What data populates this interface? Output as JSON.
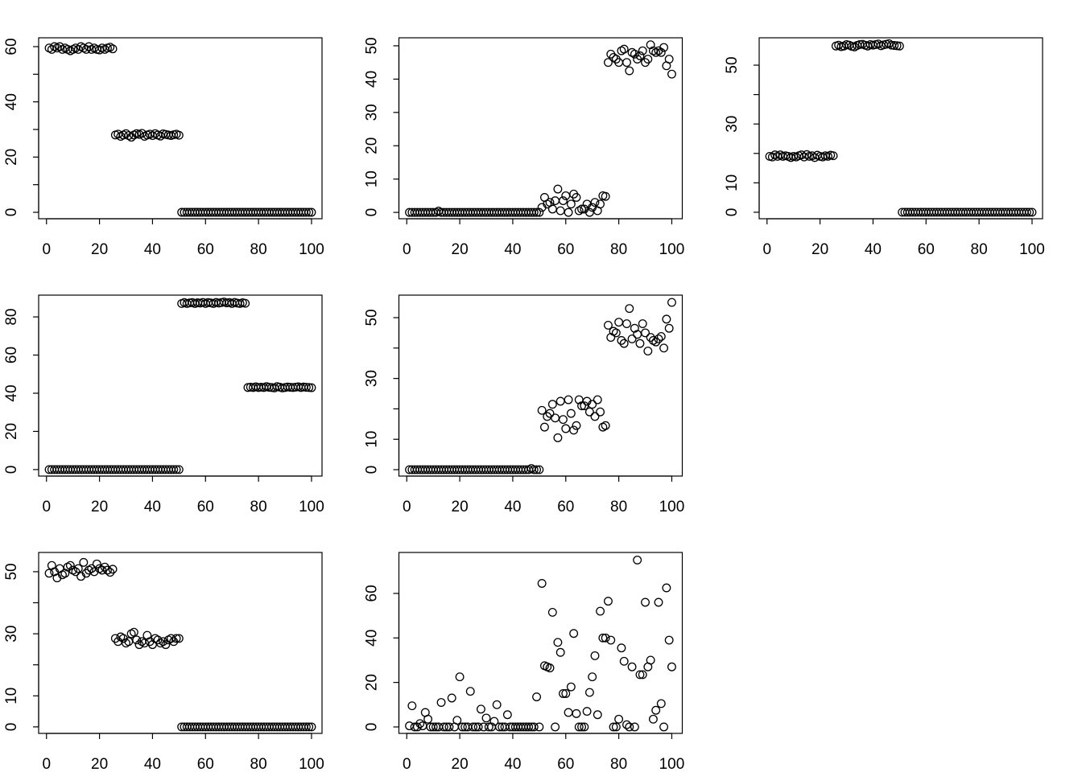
{
  "chart_data": [
    {
      "type": "scatter",
      "x": [
        1,
        2,
        3,
        4,
        5,
        6,
        7,
        8,
        9,
        10,
        11,
        12,
        13,
        14,
        15,
        16,
        17,
        18,
        19,
        20,
        21,
        22,
        23,
        24,
        25,
        26,
        27,
        28,
        29,
        30,
        31,
        32,
        33,
        34,
        35,
        36,
        37,
        38,
        39,
        40,
        41,
        42,
        43,
        44,
        45,
        46,
        47,
        48,
        49,
        50,
        51,
        52,
        53,
        54,
        55,
        56,
        57,
        58,
        59,
        60,
        61,
        62,
        63,
        64,
        65,
        66,
        67,
        68,
        69,
        70,
        71,
        72,
        73,
        74,
        75,
        76,
        77,
        78,
        79,
        80,
        81,
        82,
        83,
        84,
        85,
        86,
        87,
        88,
        89,
        90,
        91,
        92,
        93,
        94,
        95,
        96,
        97,
        98,
        99,
        100
      ],
      "values": [
        59.5,
        59,
        60,
        59.5,
        60,
        59,
        59.5,
        59,
        58.5,
        59,
        59.5,
        59,
        60,
        59.5,
        59,
        60,
        59,
        59.5,
        59,
        58.8,
        59.5,
        59,
        59.5,
        59.8,
        59.2,
        28,
        28.3,
        27.5,
        28,
        28.5,
        27.8,
        27.2,
        28,
        28.5,
        28.2,
        28.6,
        27.5,
        28,
        28.3,
        27.8,
        28.5,
        28,
        27.6,
        28.4,
        28.2,
        28,
        27.8,
        28.1,
        28.3,
        27.9,
        0,
        0,
        0,
        0,
        0,
        0,
        0,
        0,
        0,
        0,
        0,
        0,
        0,
        0,
        0,
        0,
        0,
        0,
        0,
        0,
        0,
        0,
        0,
        0,
        0,
        0,
        0,
        0,
        0,
        0,
        0,
        0,
        0,
        0,
        0,
        0,
        0,
        0,
        0,
        0,
        0,
        0,
        0,
        0,
        0,
        0,
        0,
        0,
        0,
        0
      ],
      "xlim": [
        -2.96,
        103.96
      ],
      "ylim": [
        -2.33,
        63.2
      ],
      "xticks": [
        0,
        20,
        40,
        60,
        80,
        100
      ],
      "yticks": [
        0,
        20,
        40,
        60
      ],
      "yticks_minor": [
        10,
        30,
        50
      ]
    },
    {
      "type": "scatter",
      "x": [
        1,
        2,
        3,
        4,
        5,
        6,
        7,
        8,
        9,
        10,
        11,
        12,
        13,
        14,
        15,
        16,
        17,
        18,
        19,
        20,
        21,
        22,
        23,
        24,
        25,
        26,
        27,
        28,
        29,
        30,
        31,
        32,
        33,
        34,
        35,
        36,
        37,
        38,
        39,
        40,
        41,
        42,
        43,
        44,
        45,
        46,
        47,
        48,
        49,
        50,
        51,
        52,
        53,
        54,
        55,
        56,
        57,
        58,
        59,
        60,
        61,
        62,
        63,
        64,
        65,
        66,
        67,
        68,
        69,
        70,
        71,
        72,
        73,
        74,
        75,
        76,
        77,
        78,
        79,
        80,
        81,
        82,
        83,
        84,
        85,
        86,
        87,
        88,
        89,
        90,
        91,
        92,
        93,
        94,
        95,
        96,
        97,
        98,
        99,
        100
      ],
      "values": [
        0,
        0,
        0,
        0,
        0,
        0,
        0,
        0,
        0,
        0,
        0,
        0.4,
        0,
        0,
        0,
        0,
        0,
        0,
        0,
        0,
        0,
        0,
        0,
        0,
        0,
        0,
        0,
        0,
        0,
        0,
        0,
        0,
        0,
        0,
        0,
        0,
        0,
        0,
        0,
        0,
        0,
        0,
        0,
        0,
        0,
        0,
        0,
        0,
        0,
        0,
        1.5,
        4.5,
        2.5,
        3,
        1,
        3.5,
        7,
        0.5,
        3.5,
        5,
        0,
        2.5,
        5.5,
        4.5,
        0.5,
        1,
        1,
        2.5,
        0,
        1.5,
        3,
        0.5,
        2.5,
        5,
        4.8,
        45,
        47.5,
        46.5,
        46,
        45,
        48.5,
        49,
        45,
        42.5,
        48,
        47.5,
        46,
        47,
        48.5,
        45,
        46,
        50.3,
        48.5,
        48,
        48.5,
        48,
        49.5,
        44,
        46,
        41.5
      ],
      "xlim": [
        -2.96,
        103.96
      ],
      "ylim": [
        -1.9,
        52.4
      ],
      "xticks": [
        0,
        20,
        40,
        60,
        80,
        100
      ],
      "yticks": [
        0,
        10,
        20,
        30,
        40,
        50
      ],
      "yticks_minor": []
    },
    {
      "type": "scatter",
      "x": [
        1,
        2,
        3,
        4,
        5,
        6,
        7,
        8,
        9,
        10,
        11,
        12,
        13,
        14,
        15,
        16,
        17,
        18,
        19,
        20,
        21,
        22,
        23,
        24,
        25,
        26,
        27,
        28,
        29,
        30,
        31,
        32,
        33,
        34,
        35,
        36,
        37,
        38,
        39,
        40,
        41,
        42,
        43,
        44,
        45,
        46,
        47,
        48,
        49,
        50,
        51,
        52,
        53,
        54,
        55,
        56,
        57,
        58,
        59,
        60,
        61,
        62,
        63,
        64,
        65,
        66,
        67,
        68,
        69,
        70,
        71,
        72,
        73,
        74,
        75,
        76,
        77,
        78,
        79,
        80,
        81,
        82,
        83,
        84,
        85,
        86,
        87,
        88,
        89,
        90,
        91,
        92,
        93,
        94,
        95,
        96,
        97,
        98,
        99,
        100
      ],
      "values": [
        19,
        18.8,
        19.5,
        19,
        19.5,
        19,
        19.2,
        19,
        18.6,
        19,
        18.8,
        19.2,
        19.5,
        18.8,
        19.6,
        19,
        19.2,
        18.6,
        19.4,
        19,
        18.8,
        19.2,
        19,
        19.4,
        19.2,
        56.5,
        56.8,
        56.3,
        56.5,
        57,
        56.8,
        56.4,
        56.2,
        56.7,
        57,
        57.1,
        56.8,
        56.5,
        57,
        56.8,
        57,
        57.2,
        56.6,
        56.9,
        57.1,
        57.3,
        56.8,
        56.7,
        56.6,
        56.5,
        0,
        0,
        0,
        0,
        0,
        0,
        0,
        0,
        0,
        0,
        0,
        0,
        0,
        0,
        0,
        0,
        0,
        0,
        0,
        0,
        0,
        0,
        0,
        0,
        0,
        0,
        0,
        0,
        0,
        0,
        0,
        0,
        0,
        0,
        0,
        0,
        0,
        0,
        0,
        0,
        0,
        0,
        0,
        0,
        0,
        0,
        0,
        0,
        0,
        0
      ],
      "xlim": [
        -2.96,
        103.96
      ],
      "ylim": [
        -2.2,
        59.3
      ],
      "xticks": [
        0,
        20,
        40,
        60,
        80,
        100
      ],
      "yticks": [
        0,
        10,
        30,
        50
      ],
      "yticks_minor": [
        20,
        40
      ]
    },
    {
      "type": "scatter",
      "x": [
        1,
        2,
        3,
        4,
        5,
        6,
        7,
        8,
        9,
        10,
        11,
        12,
        13,
        14,
        15,
        16,
        17,
        18,
        19,
        20,
        21,
        22,
        23,
        24,
        25,
        26,
        27,
        28,
        29,
        30,
        31,
        32,
        33,
        34,
        35,
        36,
        37,
        38,
        39,
        40,
        41,
        42,
        43,
        44,
        45,
        46,
        47,
        48,
        49,
        50,
        51,
        52,
        53,
        54,
        55,
        56,
        57,
        58,
        59,
        60,
        61,
        62,
        63,
        64,
        65,
        66,
        67,
        68,
        69,
        70,
        71,
        72,
        73,
        74,
        75,
        76,
        77,
        78,
        79,
        80,
        81,
        82,
        83,
        84,
        85,
        86,
        87,
        88,
        89,
        90,
        91,
        92,
        93,
        94,
        95,
        96,
        97,
        98,
        99,
        100
      ],
      "values": [
        0,
        0,
        0,
        0,
        0,
        0,
        0,
        0,
        0,
        0,
        0,
        0,
        0,
        0,
        0,
        0,
        0,
        0,
        0,
        0,
        0,
        0,
        0,
        0,
        0,
        0,
        0,
        0,
        0,
        0,
        0,
        0,
        0,
        0,
        0,
        0,
        0,
        0,
        0,
        0,
        0,
        0,
        0,
        0,
        0,
        0,
        0,
        0,
        0,
        0,
        87,
        87.5,
        87,
        87.3,
        87.5,
        87,
        87.4,
        87.2,
        87.6,
        87,
        87.5,
        87.3,
        87,
        87.6,
        87.2,
        87.5,
        87.8,
        87.3,
        87.5,
        87,
        87.6,
        87.2,
        87,
        87.4,
        87.1,
        43,
        43.2,
        43,
        43.4,
        43,
        43.2,
        43,
        43.5,
        43.1,
        43,
        42.8,
        43.5,
        43.2,
        42.8,
        43,
        43.3,
        43.1,
        43,
        43.2,
        43.4,
        43,
        43.3,
        43.1,
        43,
        42.9
      ],
      "xlim": [
        -2.96,
        103.96
      ],
      "ylim": [
        -3.4,
        91.4
      ],
      "xticks": [
        0,
        20,
        40,
        60,
        80,
        100
      ],
      "yticks": [
        0,
        20,
        40,
        60,
        80
      ],
      "yticks_minor": []
    },
    {
      "type": "scatter",
      "x": [
        1,
        2,
        3,
        4,
        5,
        6,
        7,
        8,
        9,
        10,
        11,
        12,
        13,
        14,
        15,
        16,
        17,
        18,
        19,
        20,
        21,
        22,
        23,
        24,
        25,
        26,
        27,
        28,
        29,
        30,
        31,
        32,
        33,
        34,
        35,
        36,
        37,
        38,
        39,
        40,
        41,
        42,
        43,
        44,
        45,
        46,
        47,
        48,
        49,
        50,
        51,
        52,
        53,
        54,
        55,
        56,
        57,
        58,
        59,
        60,
        61,
        62,
        63,
        64,
        65,
        66,
        67,
        68,
        69,
        70,
        71,
        72,
        73,
        74,
        75,
        76,
        77,
        78,
        79,
        80,
        81,
        82,
        83,
        84,
        85,
        86,
        87,
        88,
        89,
        90,
        91,
        92,
        93,
        94,
        95,
        96,
        97,
        98,
        99,
        100
      ],
      "values": [
        0,
        0,
        0,
        0,
        0,
        0,
        0,
        0,
        0,
        0,
        0,
        0,
        0,
        0,
        0,
        0,
        0,
        0,
        0,
        0,
        0,
        0,
        0,
        0,
        0,
        0,
        0,
        0,
        0,
        0,
        0,
        0,
        0,
        0,
        0,
        0,
        0,
        0,
        0,
        0,
        0,
        0,
        0,
        0,
        0,
        0,
        0.4,
        0,
        0,
        0,
        19.5,
        14,
        17.5,
        18.5,
        21.5,
        17,
        10.5,
        22.5,
        16.5,
        13.5,
        23,
        18.5,
        13,
        14.5,
        23,
        21,
        21,
        22.5,
        19,
        21.5,
        17.5,
        23,
        19,
        14,
        14.5,
        47.5,
        43.5,
        45.5,
        45,
        48.5,
        42.5,
        41.5,
        48,
        53,
        43,
        46.5,
        44.5,
        41.5,
        48,
        45,
        39,
        43.5,
        42.5,
        42,
        43,
        43.8,
        40,
        49.5,
        46.5,
        55
      ],
      "xlim": [
        -2.96,
        103.96
      ],
      "ylim": [
        -2.1,
        57.4
      ],
      "xticks": [
        0,
        20,
        40,
        60,
        80,
        100
      ],
      "yticks": [
        0,
        10,
        30,
        50
      ],
      "yticks_minor": [
        20,
        40
      ]
    },
    {
      "type": "scatter",
      "x": [
        1,
        2,
        3,
        4,
        5,
        6,
        7,
        8,
        9,
        10,
        11,
        12,
        13,
        14,
        15,
        16,
        17,
        18,
        19,
        20,
        21,
        22,
        23,
        24,
        25,
        26,
        27,
        28,
        29,
        30,
        31,
        32,
        33,
        34,
        35,
        36,
        37,
        38,
        39,
        40,
        41,
        42,
        43,
        44,
        45,
        46,
        47,
        48,
        49,
        50,
        51,
        52,
        53,
        54,
        55,
        56,
        57,
        58,
        59,
        60,
        61,
        62,
        63,
        64,
        65,
        66,
        67,
        68,
        69,
        70,
        71,
        72,
        73,
        74,
        75,
        76,
        77,
        78,
        79,
        80,
        81,
        82,
        83,
        84,
        85,
        86,
        87,
        88,
        89,
        90,
        91,
        92,
        93,
        94,
        95,
        96,
        97,
        98,
        99,
        100
      ],
      "values": [
        49.5,
        52,
        50,
        48,
        51,
        49,
        49.5,
        51.5,
        52,
        50.5,
        50,
        51,
        48.5,
        53,
        49.5,
        50.5,
        51,
        50,
        52.5,
        51,
        50.5,
        51.5,
        50.5,
        49.8,
        50.8,
        28.5,
        27.5,
        29,
        28.5,
        27,
        27.5,
        30,
        30.5,
        28,
        26.5,
        27.5,
        27,
        29.5,
        27.5,
        26.5,
        28.5,
        28,
        27,
        27.5,
        26.5,
        28,
        28.5,
        27.5,
        28.5,
        28.5,
        0,
        0,
        0,
        0,
        0,
        0,
        0,
        0,
        0,
        0,
        0,
        0,
        0,
        0,
        0,
        0,
        0,
        0,
        0,
        0,
        0,
        0,
        0,
        0,
        0,
        0,
        0,
        0,
        0,
        0,
        0,
        0,
        0,
        0,
        0,
        0,
        0,
        0,
        0,
        0,
        0,
        0,
        0,
        0,
        0,
        0,
        0,
        0,
        0,
        0
      ],
      "xlim": [
        -2.96,
        103.96
      ],
      "ylim": [
        -2.1,
        56.2
      ],
      "xticks": [
        0,
        20,
        40,
        60,
        80,
        100
      ],
      "yticks": [
        0,
        10,
        30,
        50
      ],
      "yticks_minor": [
        20,
        40
      ]
    },
    {
      "type": "scatter",
      "x": [
        1,
        2,
        3,
        4,
        5,
        6,
        7,
        8,
        9,
        10,
        11,
        12,
        13,
        14,
        15,
        16,
        17,
        18,
        19,
        20,
        21,
        22,
        23,
        24,
        25,
        26,
        27,
        28,
        29,
        30,
        31,
        32,
        33,
        34,
        35,
        36,
        37,
        38,
        39,
        40,
        41,
        42,
        43,
        44,
        45,
        46,
        47,
        48,
        49,
        50,
        51,
        52,
        53,
        54,
        55,
        56,
        57,
        58,
        59,
        60,
        61,
        62,
        63,
        64,
        65,
        66,
        67,
        68,
        69,
        70,
        71,
        72,
        73,
        74,
        75,
        76,
        77,
        78,
        79,
        80,
        81,
        82,
        83,
        84,
        85,
        86,
        87,
        88,
        89,
        90,
        91,
        92,
        93,
        94,
        95,
        96,
        97,
        98,
        99,
        100
      ],
      "values": [
        0.5,
        9.5,
        0,
        0,
        1.5,
        0.5,
        6.5,
        3.5,
        0,
        0,
        0,
        0,
        11,
        0,
        0,
        0,
        13,
        0,
        3,
        22.5,
        0,
        0,
        0,
        16,
        0,
        0,
        0,
        8,
        0,
        4,
        0,
        0,
        2.5,
        10,
        0,
        0,
        0,
        5.5,
        0,
        0,
        0,
        0,
        0,
        0,
        0,
        0,
        0,
        0,
        13.5,
        0,
        64.5,
        27.5,
        27,
        26.5,
        51.5,
        0,
        38,
        33.5,
        15,
        15,
        6.5,
        18,
        42,
        6,
        0,
        0,
        0,
        7,
        15.5,
        22.5,
        32,
        5.5,
        52,
        40,
        40,
        56.5,
        39,
        0,
        0,
        3.5,
        35.5,
        29.5,
        1,
        0,
        27,
        0,
        75,
        23.5,
        23.5,
        56,
        27,
        30,
        3.5,
        7.5,
        56,
        10.5,
        0,
        62.5,
        39,
        27
      ],
      "xlim": [
        -2.96,
        103.96
      ],
      "ylim": [
        -2.9,
        78.4
      ],
      "xticks": [
        0,
        20,
        40,
        60,
        80,
        100
      ],
      "yticks": [
        0,
        20,
        40,
        60
      ],
      "yticks_minor": []
    }
  ]
}
